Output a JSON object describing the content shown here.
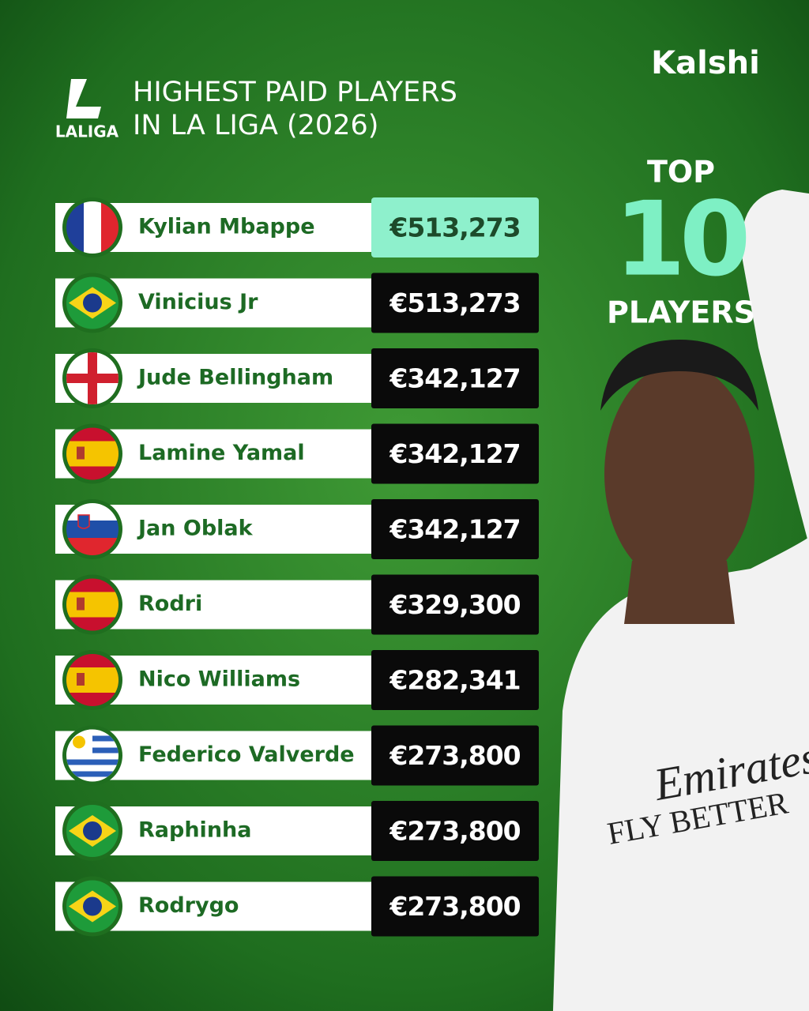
{
  "header": {
    "logo": "LALIGA",
    "title_line1": "HIGHEST PAID PLAYERS",
    "title_line2": "IN LA LIGA (2026)",
    "brand": "Kalshi"
  },
  "badge": {
    "top": "TOP",
    "number": "10",
    "bottom": "PLAYERS"
  },
  "table": {
    "rows": [
      {
        "name": "Kylian Mbappe",
        "salary": "€513,273"
      },
      {
        "name": "Vinicius Jr",
        "salary": "€513,273"
      },
      {
        "name": "Jude Bellingham",
        "salary": "€342,127"
      },
      {
        "name": "Lamine Yamal",
        "salary": "€342,127"
      },
      {
        "name": "Jan Oblak",
        "salary": "€342,127"
      },
      {
        "name": "Rodri",
        "salary": "€329,300"
      },
      {
        "name": "Nico Williams",
        "salary": "€282,341"
      },
      {
        "name": "Federico Valverde",
        "salary": "€273,800"
      },
      {
        "name": "Raphinha",
        "salary": "€273,800"
      },
      {
        "name": "Rodrygo",
        "salary": "€273,800"
      }
    ]
  }
}
